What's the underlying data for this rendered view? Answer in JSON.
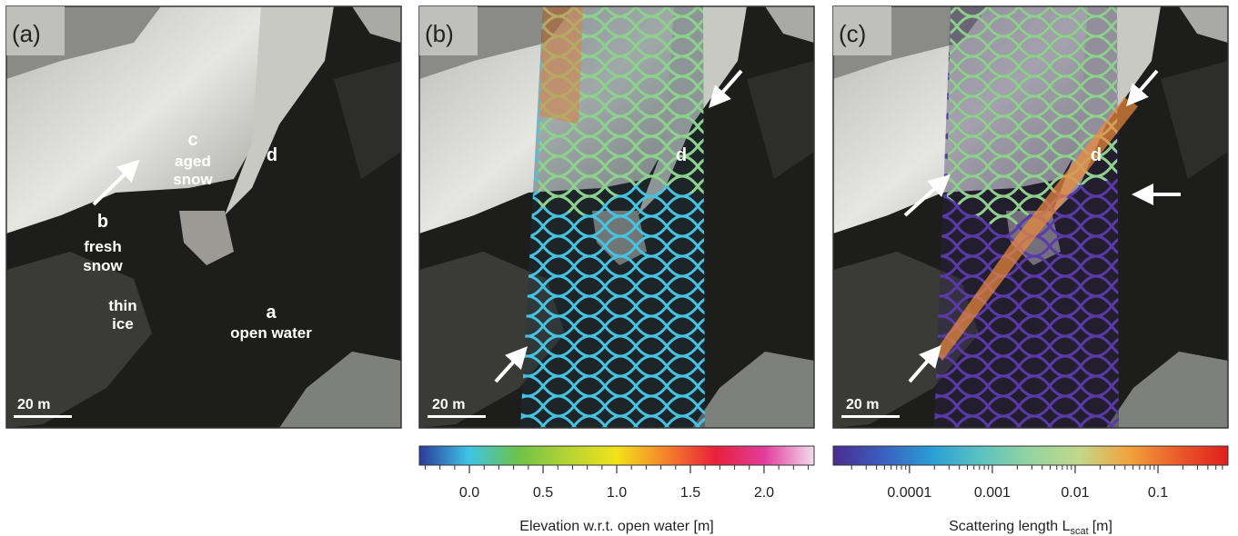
{
  "panels": [
    {
      "label": "(a)",
      "annotations": [
        "c",
        "aged",
        "snow",
        "d",
        "b",
        "fresh",
        "snow",
        "thin",
        "ice",
        "a",
        "open water"
      ],
      "scale_bar": "20 m"
    },
    {
      "label": "(b)",
      "annotations": [
        "d"
      ],
      "scale_bar": "20 m"
    },
    {
      "label": "(c)",
      "annotations": [
        "d"
      ],
      "scale_bar": "20 m"
    }
  ],
  "colorbars": [
    {
      "label": "Elevation w.r.t. open water [m]",
      "lim": [
        -0.34,
        2.34
      ],
      "ticks": [
        {
          "value": 0,
          "label": "0.0"
        },
        {
          "value": 0.5,
          "label": "0.5"
        },
        {
          "value": 1,
          "label": "1.0"
        },
        {
          "value": 1.5,
          "label": "1.5"
        },
        {
          "value": 2,
          "label": "2.0"
        }
      ],
      "minor_ticks": [
        -0.3,
        -0.2,
        -0.1,
        0.1,
        0.2,
        0.3,
        0.4,
        0.6,
        0.7,
        0.8,
        0.9,
        1.1,
        1.2,
        1.3,
        1.4,
        1.6,
        1.7,
        1.8,
        1.9,
        2.1,
        2.2,
        2.3
      ],
      "colors": [
        "#2b3a9a",
        "#3ec4e6",
        "#6cc24a",
        "#b5d334",
        "#f2e21a",
        "#f5822a",
        "#e8203a",
        "#e23d9c",
        "#f3dcee"
      ]
    },
    {
      "label": "Scattering length L",
      "label_subscript": "scat",
      "label_suffix": "[m]",
      "log": true,
      "lim": [
        1.2e-05,
        0.7
      ],
      "ticks": [
        0.0001,
        0.001,
        0.01,
        0.1
      ],
      "minor_ticks": [
        2e-05,
        3e-05,
        4e-05,
        5e-05,
        6e-05,
        7e-05,
        8e-05,
        9e-05,
        0.0002,
        0.0003,
        0.0004,
        0.0005,
        0.0006,
        0.0007,
        0.0008,
        0.0009,
        0.002,
        0.003,
        0.004,
        0.005,
        0.006,
        0.007,
        0.008,
        0.009,
        0.02,
        0.03,
        0.04,
        0.05,
        0.06,
        0.07,
        0.08,
        0.09,
        0.2,
        0.3,
        0.4,
        0.5,
        0.6
      ],
      "colors": [
        "#4a2c8f",
        "#3a5fc0",
        "#2a9ed4",
        "#5cc3c0",
        "#96d3a0",
        "#c2d88a",
        "#f2a23c",
        "#ea5a2a",
        "#e01e1e"
      ]
    }
  ]
}
